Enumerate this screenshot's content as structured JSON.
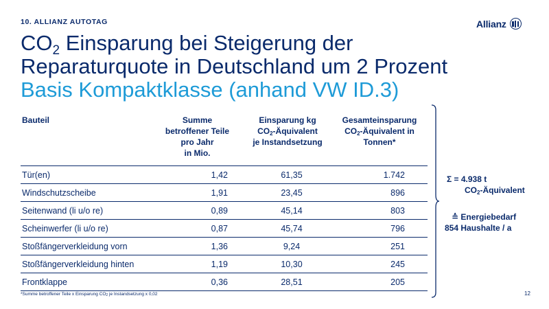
{
  "header": {
    "tag": "10. ALLIANZ AUTOTAG",
    "logo_text": "Allianz"
  },
  "title": {
    "part1_pre": "CO",
    "part1_sub": "2",
    "part1_post": " Einsparung bei Steigerung der",
    "line2": "Reparaturquote in Deutschland um 2 Prozent",
    "subtitle": "Basis Kompaktklasse (anhand VW ID.3)"
  },
  "table": {
    "headers": {
      "c0": "Bauteil",
      "c1_l1": "Summe",
      "c1_l2": "betroffener Teile",
      "c1_l3": "pro Jahr",
      "c1_l4": "in Mio.",
      "c2_l1": "Einsparung kg",
      "c2_l2_pre": "CO",
      "c2_l2_sub": "2",
      "c2_l2_post": "-Äquivalent",
      "c2_l3": "je Instandsetzung",
      "c3_l1": "Gesamteinsparung",
      "c3_l2_pre": "CO",
      "c3_l2_sub": "2",
      "c3_l2_post": "-Äquivalent in",
      "c3_l3": "Tonnen*"
    },
    "rows": [
      {
        "part": "Tür(en)",
        "count": "1,42",
        "per_repair": "61,35",
        "total": "1.742"
      },
      {
        "part": "Windschutzscheibe",
        "count": "1,91",
        "per_repair": "23,45",
        "total": "896"
      },
      {
        "part": "Seitenwand (li u/o re)",
        "count": "0,89",
        "per_repair": "45,14",
        "total": "803"
      },
      {
        "part": "Scheinwerfer (li u/o re)",
        "count": "0,87",
        "per_repair": "45,74",
        "total": "796"
      },
      {
        "part": "Stoßfängerverkleidung vorn",
        "count": "1,36",
        "per_repair": "9,24",
        "total": "251"
      },
      {
        "part": "Stoßfängerverkleidung hinten",
        "count": "1,19",
        "per_repair": "10,30",
        "total": "245"
      },
      {
        "part": "Frontklappe",
        "count": "0,36",
        "per_repair": "28,51",
        "total": "205"
      }
    ]
  },
  "summary": {
    "sum_line": "Σ = 4.938 t",
    "co2_pre": "CO",
    "co2_sub": "2",
    "co2_post": "-Äquivalent",
    "energy_line1": "≙ Energiebedarf",
    "energy_line2": "854 Haushalte / a"
  },
  "footnote": {
    "pre": "*Summe betroffener Teile x Einsparung CO",
    "sub": "2",
    "post": " je Instandsetzung x 0,02"
  },
  "page_number": "12",
  "colors": {
    "primary": "#0a2a6b",
    "accent": "#1e9bd7"
  }
}
